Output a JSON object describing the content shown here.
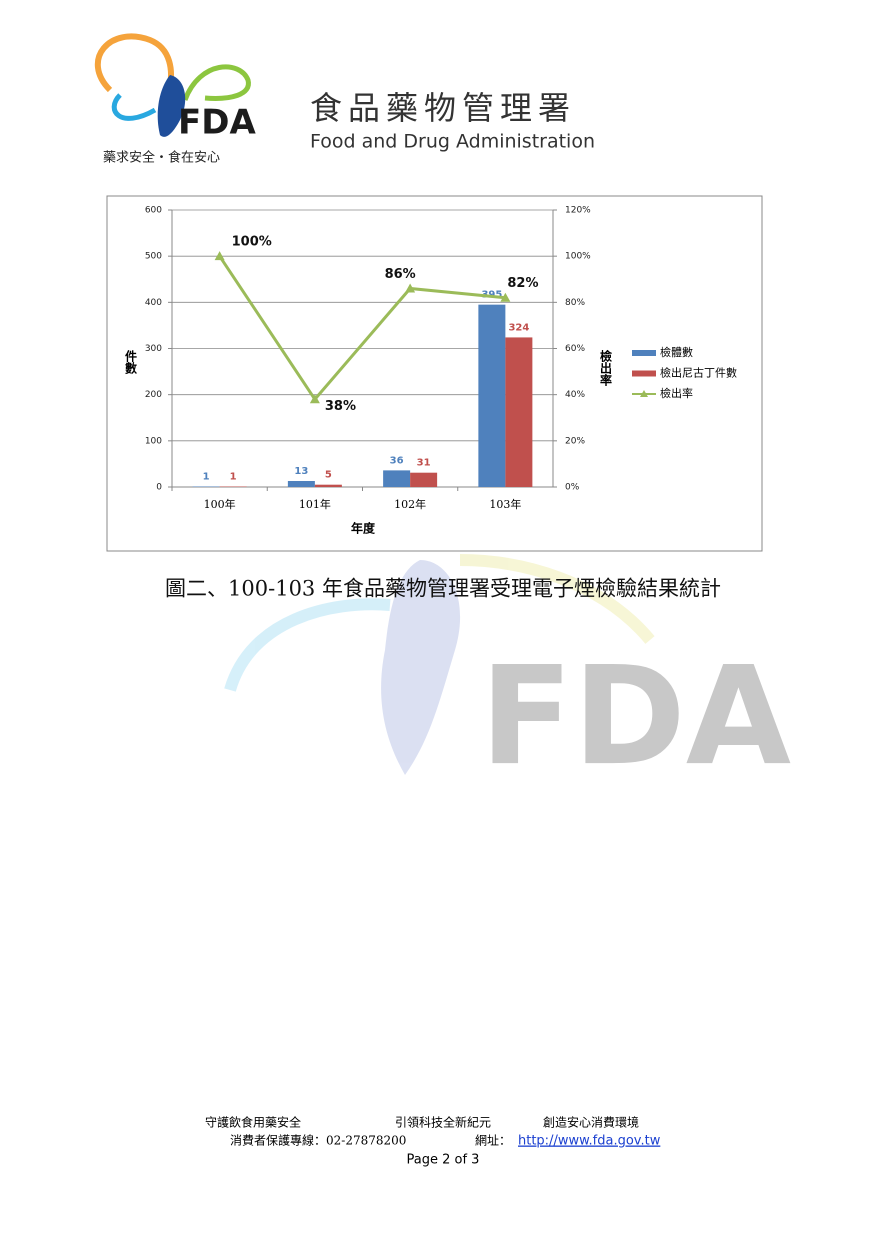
{
  "header": {
    "logo": "FDA",
    "slogan": "藥求安全・食在安心",
    "org_name": "食品藥物管理署",
    "org_name_en": "Food and Drug Administration"
  },
  "watermark": "FDA",
  "chart_data": {
    "type": "bar",
    "categories": [
      "100年",
      "101年",
      "102年",
      "103年"
    ],
    "series": [
      {
        "name": "檢體數",
        "color": "#4f81bd",
        "values": [
          1,
          13,
          36,
          395
        ]
      },
      {
        "name": "檢出尼古丁件數",
        "color": "#c0504d",
        "values": [
          1,
          5,
          31,
          324
        ]
      },
      {
        "name": "檢出率",
        "color": "#9bbb59",
        "type": "line",
        "axis": "y2",
        "values": [
          100,
          38,
          86,
          82
        ],
        "value_labels": [
          "100%",
          "38%",
          "86%",
          "82%"
        ]
      }
    ],
    "ylim": [
      0,
      600
    ],
    "yticks": [
      0,
      100,
      200,
      300,
      400,
      500,
      600
    ],
    "y2lim": [
      0,
      120
    ],
    "y2ticks": [
      {
        "value": 0,
        "label": "0%"
      },
      {
        "value": 20,
        "label": "20%"
      },
      {
        "value": 40,
        "label": "40%"
      },
      {
        "value": 60,
        "label": "60%"
      },
      {
        "value": 80,
        "label": "80%"
      },
      {
        "value": 100,
        "label": "100%"
      },
      {
        "value": 120,
        "label": "120%"
      }
    ],
    "ylabel": "件數",
    "y2label": "檢出率",
    "xlabel": "年度",
    "grid": true,
    "legend": "right"
  },
  "caption": "圖二、100-103 年食品藥物管理署受理電子煙檢驗結果統計",
  "footer": {
    "mottos": [
      "守護飲食用藥安全",
      "引領科技全新紀元",
      "創造安心消費環境"
    ],
    "hotline": "消費者保護專線：02-27878200",
    "url_label": "網址：",
    "url": "http://www.fda.gov.tw",
    "page": "Page 2 of 3"
  }
}
